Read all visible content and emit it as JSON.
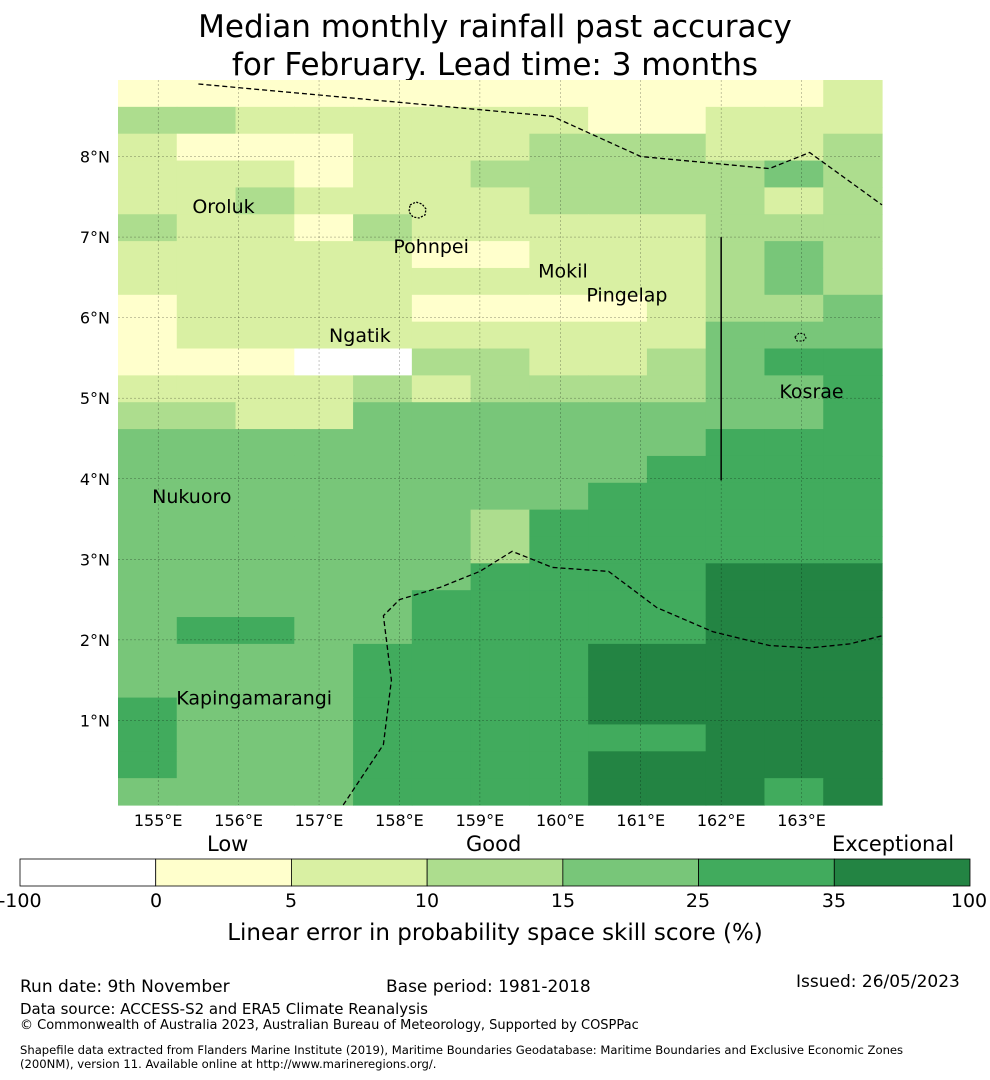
{
  "title": {
    "line1": "Median monthly rainfall past accuracy",
    "line2": "for February. Lead time: 3 months"
  },
  "map": {
    "lon_range": [
      154.5,
      164.0
    ],
    "lat_range": [
      -0.05,
      8.95
    ],
    "lat_ticks": [
      {
        "value": 1,
        "label": "1°N"
      },
      {
        "value": 2,
        "label": "2°N"
      },
      {
        "value": 3,
        "label": "3°N"
      },
      {
        "value": 4,
        "label": "4°N"
      },
      {
        "value": 5,
        "label": "5°N"
      },
      {
        "value": 6,
        "label": "6°N"
      },
      {
        "value": 7,
        "label": "7°N"
      },
      {
        "value": 8,
        "label": "8°N"
      }
    ],
    "lon_ticks": [
      {
        "value": 155,
        "label": "155°E"
      },
      {
        "value": 156,
        "label": "156°E"
      },
      {
        "value": 157,
        "label": "157°E"
      },
      {
        "value": 158,
        "label": "158°E"
      },
      {
        "value": 159,
        "label": "159°E"
      },
      {
        "value": 160,
        "label": "160°E"
      },
      {
        "value": 161,
        "label": "161°E"
      },
      {
        "value": 162,
        "label": "162°E"
      },
      {
        "value": 163,
        "label": "163°E"
      }
    ],
    "colors": [
      "#ffffff",
      "#ffffcc",
      "#d9f0a3",
      "#addd8e",
      "#78c679",
      "#41ab5d",
      "#238443"
    ],
    "grid_rows_north_to_south": [
      "1111111111112",
      "3322222211222",
      "2111222333223",
      "2221223333343",
      "2232222333323",
      "3221322222333",
      "2222211222343",
      "2222222222343",
      "1222211112334",
      "1222222222444",
      "1110033223455",
      "2222323333445",
      "3322444444445",
      "4444444444555",
      "4444444445555",
      "4444444455555",
      "4444443555555",
      "4444443555555",
      "4444445555666",
      "4444455555666",
      "4554455555666",
      "4444555566666",
      "4444555566666",
      "5444555566666",
      "5444555555666",
      "5444555566666",
      "4444555566656"
    ],
    "places": [
      {
        "name": "Oroluk",
        "lon": 155.3,
        "lat": 7.3
      },
      {
        "name": "Pohnpei",
        "lon": 157.8,
        "lat": 6.8
      },
      {
        "name": "Mokil",
        "lon": 159.6,
        "lat": 6.5
      },
      {
        "name": "Pingelap",
        "lon": 160.2,
        "lat": 6.2
      },
      {
        "name": "Ngatik",
        "lon": 157.0,
        "lat": 5.7
      },
      {
        "name": "Kosrae",
        "lon": 162.6,
        "lat": 5.0
      },
      {
        "name": "Nukuoro",
        "lon": 154.8,
        "lat": 3.7
      },
      {
        "name": "Kapingamarangi",
        "lon": 155.1,
        "lat": 1.2
      }
    ],
    "boundary_north": [
      [
        155.5,
        8.9
      ],
      [
        159.9,
        8.5
      ],
      [
        161.0,
        8.0
      ],
      [
        162.6,
        7.85
      ],
      [
        163.1,
        8.05
      ],
      [
        164.0,
        7.4
      ]
    ],
    "boundary_south": [
      [
        157.3,
        -0.05
      ],
      [
        157.8,
        0.7
      ],
      [
        157.9,
        1.5
      ],
      [
        157.8,
        2.3
      ],
      [
        158.0,
        2.5
      ],
      [
        158.5,
        2.65
      ],
      [
        159.0,
        2.85
      ],
      [
        159.4,
        3.1
      ],
      [
        159.9,
        2.9
      ],
      [
        160.6,
        2.85
      ],
      [
        161.2,
        2.4
      ],
      [
        161.9,
        2.1
      ],
      [
        162.6,
        1.93
      ],
      [
        163.1,
        1.9
      ],
      [
        163.6,
        1.95
      ],
      [
        164.0,
        2.05
      ]
    ],
    "vertical_line": {
      "lon": 162.0,
      "lat_from": 3.98,
      "lat_to": 7.0
    }
  },
  "colorbar": {
    "category_labels": [
      "Low",
      "Good",
      "Exceptional"
    ],
    "ticks": [
      "-100",
      "0",
      "5",
      "10",
      "15",
      "25",
      "35",
      "100"
    ],
    "colors": [
      "#ffffff",
      "#ffffcc",
      "#d9f0a3",
      "#addd8e",
      "#78c679",
      "#41ab5d",
      "#238443"
    ],
    "title": "Linear error in probability space skill score (%)"
  },
  "footer": {
    "run_date": "Run date: 9th November",
    "base_period": "Base period: 1981-2018",
    "issued": "Issued: 26/05/2023",
    "data_source": "Data source: ACCESS-S2 and ERA5 Climate Reanalysis",
    "copyright": "© Commonwealth of Australia 2023, Australian Bureau of Meteorology, Supported by COSPPac",
    "shapefile_line1": "Shapefile data extracted from Flanders Marine Institute (2019), Maritime Boundaries Geodatabase: Maritime Boundaries and Exclusive Economic Zones",
    "shapefile_line2": "(200NM), version 11. Available online at http://www.marineregions.org/."
  }
}
